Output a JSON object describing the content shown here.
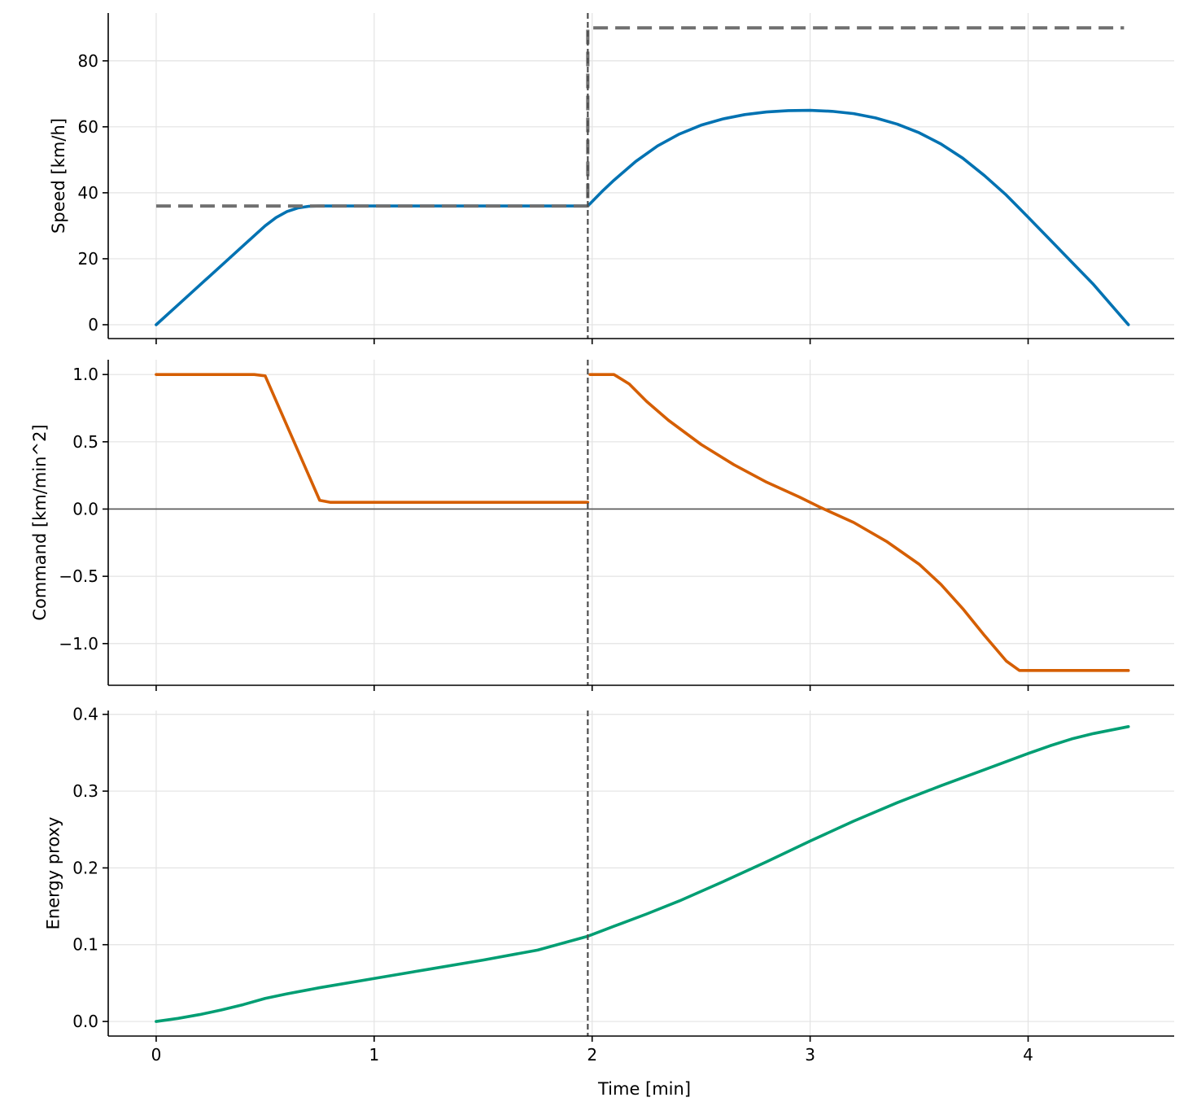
{
  "chart_data": [
    {
      "type": "line",
      "ylabel": "Speed [km/h]",
      "xlim": [
        -0.22,
        4.67
      ],
      "ylim": [
        -4.2,
        94.5
      ],
      "xticks": [
        0,
        1,
        2,
        3,
        4
      ],
      "yticks": [
        0,
        20,
        40,
        60,
        80
      ],
      "ytick_labels": [
        "0",
        "20",
        "40",
        "60",
        "80"
      ],
      "grid": true,
      "vline": {
        "x": 1.98,
        "style": "dashed",
        "color": "#4d4d4d"
      },
      "colors": {
        "speed": "#0072b2",
        "limit": "#707070"
      },
      "series": [
        {
          "role": "speed",
          "style": "solid",
          "x": [
            0,
            0.1,
            0.2,
            0.3,
            0.4,
            0.5,
            0.55,
            0.6,
            0.65,
            0.7,
            0.75,
            0.8,
            1.0,
            1.5,
            1.98,
            2.05,
            2.1,
            2.2,
            2.3,
            2.4,
            2.5,
            2.6,
            2.7,
            2.8,
            2.9,
            3.0,
            3.1,
            3.2,
            3.3,
            3.4,
            3.5,
            3.6,
            3.7,
            3.8,
            3.9,
            4.0,
            4.1,
            4.2,
            4.3,
            4.46
          ],
          "y": [
            0,
            6,
            12,
            18,
            24,
            30,
            32.5,
            34.3,
            35.4,
            35.9,
            36,
            36,
            36,
            36,
            36,
            40.7,
            43.8,
            49.5,
            54.2,
            57.8,
            60.5,
            62.4,
            63.7,
            64.5,
            64.9,
            65,
            64.7,
            64,
            62.7,
            60.8,
            58.2,
            54.8,
            50.5,
            45.2,
            39.3,
            32.6,
            25.8,
            19,
            12.2,
            0
          ]
        },
        {
          "role": "limit",
          "style": "dashed",
          "x": [
            0,
            1.98,
            1.98,
            4.44
          ],
          "y": [
            36,
            36,
            90,
            90
          ]
        }
      ]
    },
    {
      "type": "line",
      "ylabel": "Command [km/min^2]",
      "xlim": [
        -0.22,
        4.67
      ],
      "ylim": [
        -1.31,
        1.11
      ],
      "xticks": [
        0,
        1,
        2,
        3,
        4
      ],
      "yticks": [
        -1.0,
        -0.5,
        0.0,
        0.5,
        1.0
      ],
      "ytick_labels": [
        "−1.0",
        "−0.5",
        "0.0",
        "0.5",
        "1.0"
      ],
      "grid": true,
      "hline": {
        "y": 0,
        "color": "#555555"
      },
      "vline": {
        "x": 1.98,
        "style": "dashed",
        "color": "#4d4d4d"
      },
      "colors": {
        "command": "#d55e00"
      },
      "series": [
        {
          "role": "command",
          "style": "solid",
          "segments": [
            {
              "x": [
                0,
                0.45,
                0.5,
                0.75,
                0.8,
                1.0,
                1.5,
                1.98
              ],
              "y": [
                1.0,
                1.0,
                0.99,
                0.065,
                0.05,
                0.05,
                0.05,
                0.05
              ]
            },
            {
              "x": [
                1.99,
                2.1,
                2.17,
                2.25,
                2.35,
                2.5,
                2.65,
                2.8,
                2.95,
                3.05,
                3.2,
                3.35,
                3.5,
                3.6,
                3.7,
                3.8,
                3.9,
                3.96,
                4.0,
                4.1,
                4.2,
                4.3,
                4.46
              ],
              "y": [
                1.0,
                1.0,
                0.93,
                0.8,
                0.66,
                0.48,
                0.33,
                0.2,
                0.09,
                0.01,
                -0.1,
                -0.24,
                -0.41,
                -0.56,
                -0.74,
                -0.94,
                -1.13,
                -1.2,
                -1.2,
                -1.2,
                -1.2,
                -1.2,
                -1.2
              ]
            }
          ]
        }
      ]
    },
    {
      "type": "line",
      "ylabel": "Energy proxy",
      "xlabel": "Time [min]",
      "xlim": [
        -0.22,
        4.67
      ],
      "ylim": [
        -0.019,
        0.405
      ],
      "xticks": [
        0,
        1,
        2,
        3,
        4
      ],
      "xtick_labels": [
        "0",
        "1",
        "2",
        "3",
        "4"
      ],
      "yticks": [
        0.0,
        0.1,
        0.2,
        0.3,
        0.4
      ],
      "ytick_labels": [
        "0.0",
        "0.1",
        "0.2",
        "0.3",
        "0.4"
      ],
      "grid": true,
      "vline": {
        "x": 1.98,
        "style": "dashed",
        "color": "#4d4d4d"
      },
      "colors": {
        "energy": "#009e73"
      },
      "series": [
        {
          "role": "energy",
          "style": "solid",
          "x": [
            0,
            0.1,
            0.2,
            0.3,
            0.4,
            0.5,
            0.6,
            0.75,
            1.0,
            1.25,
            1.5,
            1.75,
            1.98,
            2.1,
            2.25,
            2.4,
            2.6,
            2.8,
            3.0,
            3.2,
            3.4,
            3.6,
            3.8,
            4.0,
            4.1,
            4.2,
            4.3,
            4.46
          ],
          "y": [
            0,
            0.004,
            0.009,
            0.015,
            0.022,
            0.03,
            0.036,
            0.044,
            0.056,
            0.068,
            0.08,
            0.093,
            0.111,
            0.124,
            0.14,
            0.157,
            0.182,
            0.208,
            0.235,
            0.261,
            0.285,
            0.307,
            0.328,
            0.349,
            0.359,
            0.368,
            0.375,
            0.384
          ]
        }
      ]
    }
  ]
}
